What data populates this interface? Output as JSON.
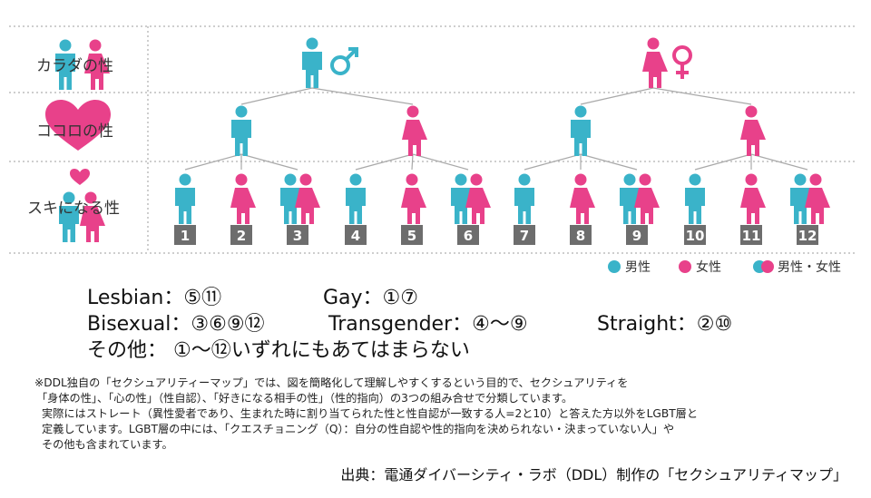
{
  "rows": {
    "body_label": "カラダの性",
    "heart_label": "ココロの性",
    "love_label": "スキになる性"
  },
  "numbers": [
    "1",
    "2",
    "3",
    "4",
    "5",
    "6",
    "7",
    "8",
    "9",
    "10",
    "11",
    "12"
  ],
  "legend": {
    "male": "男性",
    "female": "女性",
    "both": "男性・女性"
  },
  "definitions": {
    "lesbian": "Lesbian：⑤⑪",
    "gay": "Gay：①⑦",
    "bisexual": "Bisexual：③⑥⑨⑫",
    "transgender": "Transgender：④～⑨",
    "straight": "Straight：②⑩",
    "other": "その他： ①～⑫いずれにもあてはまらない"
  },
  "note": {
    "line1": "※DDL独自の「セクシュアリティーマップ」では、図を簡略化して理解しやすくするという目的で、セクシュアリティを",
    "line2": "「身体の性」、「心の性」（性自認）、「好きになる相手の性」（性的指向）の3つの組み合せで分類しています。",
    "line3": "実際にはストレート（異性愛者であり、生まれた時に割り当てられた性と性自認が一致する人=2と10）と答えた方以外をLGBT層と",
    "line4": "定義しています。LGBT層の中には、「クエスチョニング（Q）：自分の性自認や性的指向を決められない・決まっていない人」や",
    "line5": "その他も含まれています。"
  },
  "source": "出典：電通ダイバーシティ・ラボ（DDL）制作の「セクシュアリティマップ」",
  "colors": {
    "male": "#3ab3c9",
    "female": "#e8418a",
    "heart": "#e8418a",
    "lines": "#a9a9a9",
    "dotted": "#bdbdbd",
    "number_box": "#6d6d6d"
  },
  "icons": {
    "male_symbol": "mars-icon",
    "female_symbol": "venus-icon"
  }
}
